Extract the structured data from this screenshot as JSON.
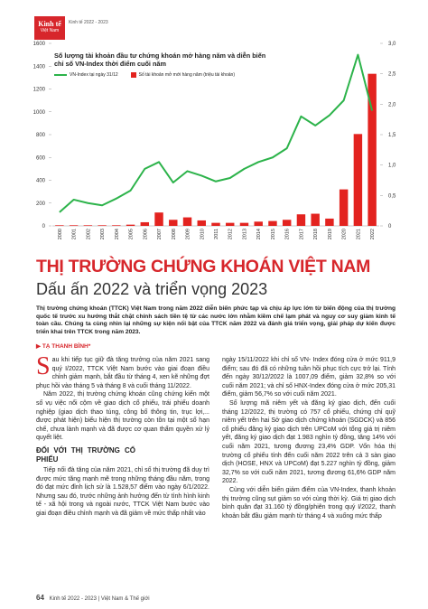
{
  "header": {
    "logo_top": "Kinh tế",
    "logo_bottom": "Việt Nam",
    "issue": "Kinh tế 2022 - 2023"
  },
  "chart_data": {
    "type": "combo",
    "title": "Số lượng tài khoản đầu tư chứng khoán mở hàng năm và diễn biến chỉ số VN-Index thời điểm cuối năm",
    "categories": [
      "2000",
      "2001",
      "2002",
      "2003",
      "2004",
      "2005",
      "2006",
      "2007",
      "2008",
      "2009",
      "2010",
      "2011",
      "2012",
      "2013",
      "2014",
      "2015",
      "2016",
      "2017",
      "2018",
      "2019",
      "2020",
      "2021",
      "2022"
    ],
    "series": [
      {
        "name": "VN-Index tại ngày 31/12",
        "type": "line",
        "color": "#2cb34a",
        "values": [
          120,
          230,
          200,
          180,
          240,
          310,
          500,
          560,
          380,
          480,
          440,
          390,
          420,
          500,
          560,
          600,
          680,
          960,
          880,
          970,
          1100,
          1500,
          1010
        ]
      },
      {
        "name": "Số tài khoản mở mới hàng năm (triệu tài khoản)",
        "type": "bar",
        "axis": "y2",
        "color": "#e3231f",
        "values": [
          0.01,
          0.01,
          0.01,
          0.01,
          0.01,
          0.02,
          0.06,
          0.22,
          0.1,
          0.14,
          0.09,
          0.05,
          0.05,
          0.05,
          0.07,
          0.08,
          0.1,
          0.19,
          0.2,
          0.12,
          0.6,
          1.51,
          2.5
        ]
      }
    ],
    "ylim": [
      0,
      1600
    ],
    "yticks": [
      0,
      200,
      400,
      600,
      800,
      1000,
      1200,
      1400,
      1600
    ],
    "y2lim": [
      0,
      3
    ],
    "y2ticks": [
      0,
      {
        "value": 0.5,
        "label": "0,5"
      },
      {
        "value": 1,
        "label": "1,0"
      },
      {
        "value": 1.5,
        "label": "1,5"
      },
      {
        "value": 2,
        "label": "2,0"
      },
      {
        "value": 2.5,
        "label": "2,5"
      },
      {
        "value": 3,
        "label": "3,0"
      }
    ]
  },
  "article": {
    "headline": "THỊ TRƯỜNG CHỨNG KHOÁN VIỆT NAM",
    "subheadline": "Dấu ấn 2022 và triển vọng 2023",
    "lead": "Thị trường chứng khoán (TTCK) Việt Nam trong năm 2022 diễn biến phức tạp và chịu áp lực lớn từ biến động của thị trường quốc tế trước xu hướng thắt chặt chính sách tiền tệ từ các nước lớn nhằm kiềm chế lạm phát và nguy cơ suy giảm kinh tế toàn cầu. Chúng ta cùng nhìn lại những sự kiện nổi bật của TTCK năm 2022 và đánh giá triển vọng, giải pháp dự kiến được triển khai trên TTCK trong năm 2023.",
    "author": "TẠ THANH BÌNH*",
    "left_paragraphs": [
      "Sau khi tiếp tục giữ đà tăng trưởng của năm 2021 sang quý I/2022, TTCK Việt Nam bước vào giai đoạn điều chỉnh giảm mạnh, bắt đầu từ tháng 4, xen kẽ những đợt phục hồi vào tháng 5 và tháng 8 và cuối tháng 11/2022.",
      "Năm 2022, thị trường chứng khoán cũng chứng kiến một số vụ việc nổi cộm về giao dịch cổ phiếu, trái phiếu doanh nghiệp (giao dịch thao túng, công bố thông tin, trục lợi,... được phát hiện) biểu hiện thị trường còn tồn tại một số hạn chế, chưa lành mạnh và đã được cơ quan thẩm quyền xử lý quyết liệt."
    ],
    "section_heading": "ĐỐI VỚI THỊ TRƯỜNG CỔ PHIẾU",
    "section_paragraphs": [
      "Tiếp nối đà tăng của năm 2021, chỉ số thị trường đã duy trì được mức tăng mạnh mẽ trong những tháng đầu năm, trong đó đạt mức đỉnh lịch sử là 1.528,57 điểm vào ngày 6/1/2022. Nhưng sau đó, trước những ảnh hưởng đến từ tình hình kinh tế - xã hội trong và ngoài nước, TTCK Việt Nam bước vào giai đoạn điều chỉnh mạnh và đã giảm về mức thấp nhất vào"
    ],
    "right_paragraphs": [
      "ngày 15/11/2022 khi chỉ số VN- Index đóng cửa ở mức 911,9 điểm; sau đó đã có những tuần hồi phục tích cực trở lại. Tính đến ngày 30/12/2022 là 1007,09 điểm, giảm 32,8% so với cuối năm 2021; và chỉ số HNX-Index đóng cửa ở mức 205,31 điểm, giảm 56,7% so với cuối năm 2021.",
      "Số lượng mã niêm yết và đăng ký giao dịch, đến cuối tháng 12/2022, thị trường có 757 cổ phiếu, chứng chỉ quỹ niêm yết trên hai Sở giao dịch chứng khoán (SGDCK) và 856 cổ phiếu đăng ký giao dịch trên UPCoM với tổng giá trị niêm yết, đăng ký giao dịch đạt 1.983 nghìn tỷ đồng, tăng 14% với cuối năm 2021, tương đương 23,4% GDP. Vốn hóa thị trường cổ phiếu tính đến cuối năm 2022 trên cả 3 sàn giao dịch (HOSE, HNX và UPCoM) đạt 5.227 nghìn tỷ đồng, giảm 32,7% so với cuối năm 2021, tương đương 61,6% GDP năm 2022.",
      "Cùng với diễn biến giảm điểm của VN-Index, thanh khoản thị trường cũng sụt giảm so với cùng thời kỳ. Giá trị giao dịch bình quân đạt 31.160 tỷ đồng/phiên trong quý I/2022, thanh khoản bắt đầu giảm mạnh từ tháng 4 và xuống mức thấp"
    ]
  },
  "footer": {
    "page": "64",
    "issue": "Kinh tế 2022 - 2023",
    "publication": "Việt Nam & Thế giới"
  }
}
